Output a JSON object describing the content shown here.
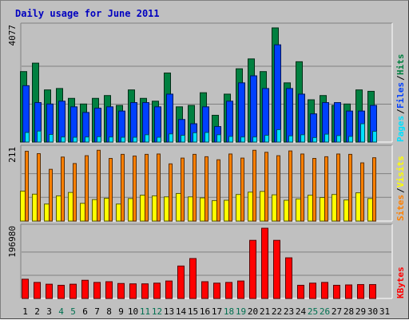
{
  "chart_data": {
    "type": "bar",
    "title": "Daily usage for June 2011",
    "categories": [
      "1",
      "2",
      "3",
      "4",
      "5",
      "6",
      "7",
      "8",
      "9",
      "10",
      "11",
      "12",
      "13",
      "14",
      "15",
      "16",
      "17",
      "18",
      "19",
      "20",
      "21",
      "22",
      "23",
      "24",
      "25",
      "26",
      "27",
      "28",
      "29",
      "30",
      "31"
    ],
    "weekend_days": [
      "4",
      "5",
      "11",
      "12",
      "18",
      "19",
      "25",
      "26"
    ],
    "panels": [
      {
        "name": "hits-files-pages",
        "ymax_label": "4077",
        "ymax": 4077,
        "legend": [
          {
            "text": "Pages",
            "color": "#00e0ff"
          },
          {
            "text": "/",
            "color": "#000000"
          },
          {
            "text": "Files",
            "color": "#0040ff"
          },
          {
            "text": "/",
            "color": "#000000"
          },
          {
            "text": "Hits",
            "color": "#008040"
          }
        ],
        "series": [
          {
            "name": "Hits",
            "color": "#008040",
            "values": [
              2500,
              2800,
              1850,
              1900,
              1550,
              1350,
              1550,
              1650,
              1300,
              1850,
              1550,
              1450,
              2450,
              1250,
              1300,
              1750,
              950,
              1700,
              2600,
              2950,
              2500,
              4050,
              2100,
              2850,
              1500,
              1650,
              1300,
              1350,
              1850,
              1800,
              0
            ]
          },
          {
            "name": "Files",
            "color": "#0040ff",
            "values": [
              2000,
              1400,
              1350,
              1450,
              1250,
              1050,
              1200,
              1250,
              1100,
              1400,
              1400,
              1250,
              1700,
              800,
              650,
              1250,
              550,
              1450,
              2100,
              2350,
              1900,
              3450,
              1900,
              1700,
              1000,
              1400,
              1400,
              1100,
              1100,
              1300,
              0
            ]
          },
          {
            "name": "Pages",
            "color": "#00e0ff",
            "values": [
              340,
              390,
              270,
              180,
              170,
              180,
              190,
              180,
              170,
              170,
              260,
              170,
              290,
              240,
              330,
              340,
              260,
              200,
              180,
              180,
              240,
              440,
              220,
              260,
              160,
              280,
              230,
              200,
              650,
              380,
              0
            ]
          }
        ]
      },
      {
        "name": "visits-sites",
        "ymax_label": "211",
        "ymax": 211,
        "legend": [
          {
            "text": "Sites",
            "color": "#ff8000"
          },
          {
            "text": "/",
            "color": "#000000"
          },
          {
            "text": "Visits",
            "color": "#ffff00"
          }
        ],
        "series": [
          {
            "name": "Visits",
            "color": "#ffff00",
            "values": [
              88,
              79,
              50,
              74,
              84,
              52,
              63,
              67,
              50,
              66,
              76,
              74,
              71,
              81,
              71,
              68,
              60,
              61,
              78,
              85,
              87,
              77,
              61,
              65,
              76,
              69,
              78,
              62,
              83,
              66,
              0
            ]
          },
          {
            "name": "Sites",
            "color": "#ff8000",
            "values": [
              205,
              198,
              152,
              188,
              169,
              192,
              208,
              184,
              196,
              191,
              196,
              197,
              168,
              185,
              196,
              189,
              180,
              197,
              185,
              208,
              202,
              192,
              206,
              197,
              184,
              189,
              197,
              196,
              171,
              186,
              0
            ]
          }
        ]
      },
      {
        "name": "kbytes",
        "ymax_label": "196980",
        "ymax": 196980,
        "legend": [
          {
            "text": "KBytes",
            "color": "#ff0000"
          }
        ],
        "series": [
          {
            "name": "KBytes",
            "color": "#ff0000",
            "values": [
              54000,
              45000,
              40000,
              37000,
              40000,
              51000,
              45000,
              47000,
              42000,
              41000,
              41000,
              43000,
              49000,
              91000,
              112000,
              47000,
              43000,
              45000,
              49000,
              163000,
              196980,
              163000,
              114000,
              37000,
              43000,
              45000,
              37000,
              38000,
              39000,
              39000,
              0
            ]
          }
        ]
      }
    ]
  }
}
